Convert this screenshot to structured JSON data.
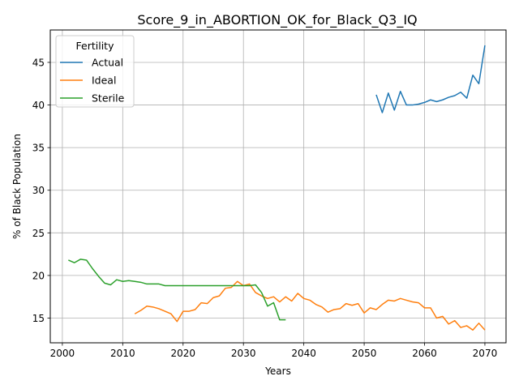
{
  "chart_data": {
    "type": "line",
    "title": "Score_9_in_ABORTION_OK_for_Black_Q3_IQ",
    "xlabel": "Years",
    "ylabel": "% of Black Population",
    "xlim": [
      1998,
      2073.5
    ],
    "ylim": [
      12.1,
      48.8
    ],
    "xticks": [
      2000,
      2010,
      2020,
      2030,
      2040,
      2050,
      2060,
      2070
    ],
    "yticks": [
      15,
      20,
      25,
      30,
      35,
      40,
      45
    ],
    "grid": true,
    "legend": {
      "title": "Fertility",
      "placement": "upper-left"
    },
    "series": [
      {
        "name": "Actual",
        "color": "#1f77b4",
        "x": [
          2052,
          2053,
          2054,
          2055,
          2056,
          2057,
          2058,
          2059,
          2060,
          2061,
          2062,
          2063,
          2064,
          2065,
          2066,
          2067,
          2068,
          2069,
          2070
        ],
        "y": [
          41.2,
          39.1,
          41.4,
          39.4,
          41.6,
          40.0,
          40.0,
          40.1,
          40.3,
          40.6,
          40.4,
          40.6,
          40.9,
          41.1,
          41.5,
          40.8,
          43.5,
          42.5,
          47.0
        ]
      },
      {
        "name": "Ideal",
        "color": "#ff7f0e",
        "x": [
          2012,
          2013,
          2014,
          2015,
          2016,
          2017,
          2018,
          2019,
          2020,
          2021,
          2022,
          2023,
          2024,
          2025,
          2026,
          2027,
          2028,
          2029,
          2030,
          2031,
          2032,
          2033,
          2034,
          2035,
          2036,
          2037,
          2038,
          2039,
          2040,
          2041,
          2042,
          2043,
          2044,
          2045,
          2046,
          2047,
          2048,
          2049,
          2050,
          2051,
          2052,
          2053,
          2054,
          2055,
          2056,
          2057,
          2058,
          2059,
          2060,
          2061,
          2062,
          2063,
          2064,
          2065,
          2066,
          2067,
          2068,
          2069,
          2070
        ],
        "y": [
          15.5,
          15.9,
          16.4,
          16.3,
          16.1,
          15.8,
          15.5,
          14.6,
          15.8,
          15.8,
          16.0,
          16.8,
          16.7,
          17.4,
          17.6,
          18.5,
          18.6,
          19.3,
          18.8,
          19.0,
          18.0,
          17.6,
          17.3,
          17.5,
          16.9,
          17.5,
          17.0,
          17.9,
          17.3,
          17.1,
          16.6,
          16.3,
          15.7,
          16.0,
          16.1,
          16.7,
          16.5,
          16.7,
          15.6,
          16.2,
          16.0,
          16.6,
          17.1,
          17.0,
          17.3,
          17.1,
          16.9,
          16.8,
          16.2,
          16.2,
          15.0,
          15.2,
          14.3,
          14.7,
          13.9,
          14.1,
          13.6,
          14.4,
          13.6
        ]
      },
      {
        "name": "Sterile",
        "color": "#2ca02c",
        "x": [
          2001,
          2002,
          2003,
          2004,
          2005,
          2006,
          2007,
          2008,
          2009,
          2010,
          2011,
          2012,
          2013,
          2014,
          2015,
          2016,
          2017,
          2018,
          2019,
          2020,
          2021,
          2022,
          2023,
          2024,
          2025,
          2026,
          2027,
          2028,
          2029,
          2030,
          2031,
          2032,
          2033,
          2034,
          2035,
          2036,
          2037
        ],
        "y": [
          21.8,
          21.5,
          21.9,
          21.8,
          20.8,
          19.9,
          19.1,
          18.9,
          19.5,
          19.3,
          19.4,
          19.3,
          19.2,
          19.0,
          19.0,
          19.0,
          18.8,
          18.8,
          18.8,
          18.8,
          18.8,
          18.8,
          18.8,
          18.8,
          18.8,
          18.8,
          18.8,
          18.8,
          18.8,
          18.8,
          18.8,
          18.9,
          18.0,
          16.4,
          16.8,
          14.8,
          14.8
        ]
      }
    ]
  }
}
